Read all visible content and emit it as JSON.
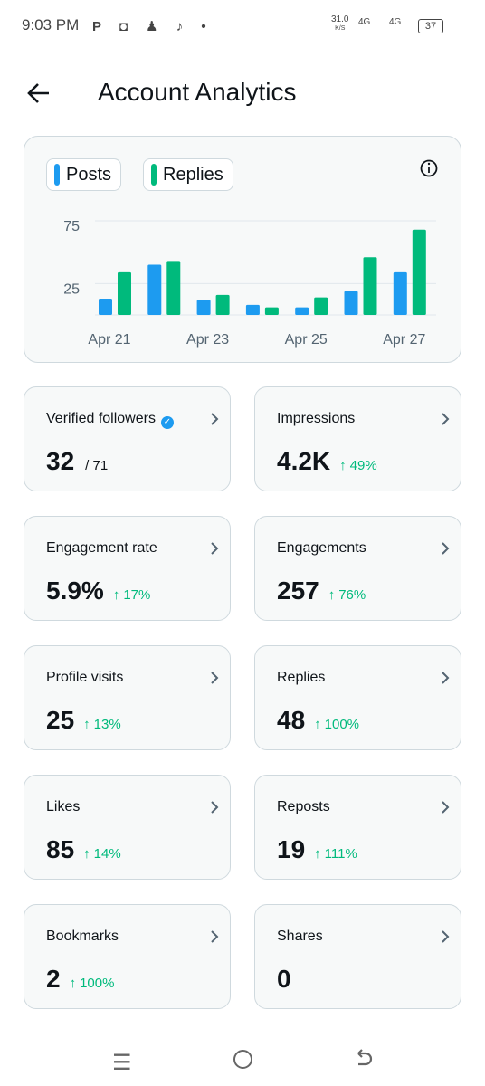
{
  "status_bar": {
    "time": "9:03 PM",
    "speed": "31.0",
    "speed_unit": "K/S",
    "network_1": "4G",
    "network_2": "4G",
    "battery": "37"
  },
  "header": {
    "title": "Account Analytics"
  },
  "chart_data": {
    "type": "bar",
    "categories": [
      "Apr 21",
      null,
      "Apr 23",
      null,
      "Apr 25",
      null,
      "Apr 27"
    ],
    "series": [
      {
        "name": "Posts",
        "color": "#1d9bf0",
        "values": [
          13,
          40,
          12,
          8,
          6,
          19,
          34
        ]
      },
      {
        "name": "Replies",
        "color": "#00ba7c",
        "values": [
          34,
          43,
          16,
          6,
          14,
          46,
          68
        ]
      }
    ],
    "ylim": [
      0,
      75
    ],
    "yticks": [
      25,
      75
    ],
    "grid": true
  },
  "cards": [
    {
      "label": "Verified followers",
      "value": "32",
      "total": "/ 71"
    },
    {
      "label": "Impressions",
      "value": "4.2K",
      "change": "49%"
    },
    {
      "label": "Engagement rate",
      "value": "5.9%",
      "change": "17%"
    },
    {
      "label": "Engagements",
      "value": "257",
      "change": "76%"
    },
    {
      "label": "Profile visits",
      "value": "25",
      "change": "13%"
    },
    {
      "label": "Replies",
      "value": "48",
      "change": "100%"
    },
    {
      "label": "Likes",
      "value": "85",
      "change": "14%"
    },
    {
      "label": "Reposts",
      "value": "19",
      "change": "111%"
    },
    {
      "label": "Bookmarks",
      "value": "2",
      "change": "100%"
    },
    {
      "label": "Shares",
      "value": "0"
    }
  ]
}
